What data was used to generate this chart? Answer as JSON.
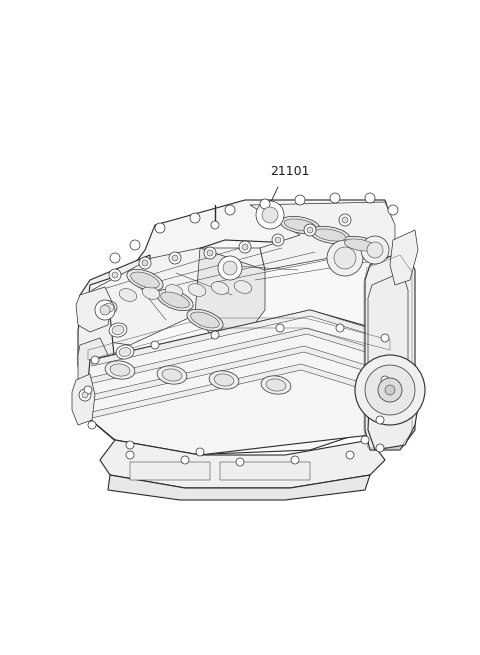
{
  "background_color": "#ffffff",
  "label_text": "21101",
  "label_fontsize": 9,
  "fig_width": 4.8,
  "fig_height": 6.55,
  "line_color": "#2a2a2a",
  "lw_main": 0.8,
  "lw_detail": 0.5,
  "lw_thin": 0.35
}
